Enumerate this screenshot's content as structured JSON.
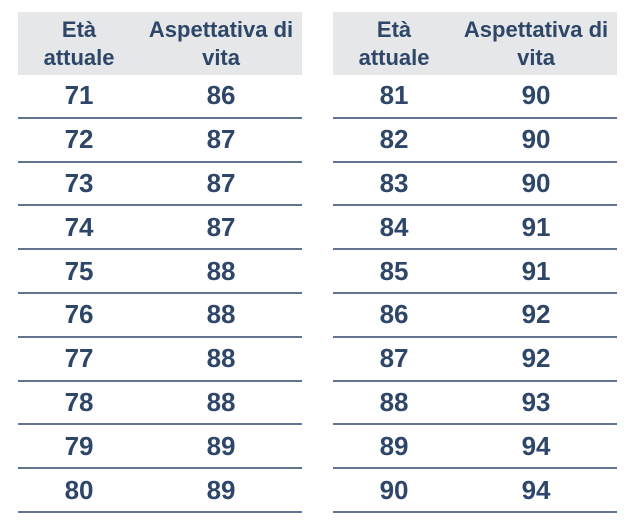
{
  "colors": {
    "background": "#ffffff",
    "header_bg": "#e6e7e9",
    "text": "#2e4668",
    "row_line": "#62748f"
  },
  "tables": [
    {
      "name": "left",
      "columns": [
        "Età attuale",
        "Aspettativa di vita"
      ],
      "rows": [
        [
          71,
          86
        ],
        [
          72,
          87
        ],
        [
          73,
          87
        ],
        [
          74,
          87
        ],
        [
          75,
          88
        ],
        [
          76,
          88
        ],
        [
          77,
          88
        ],
        [
          78,
          88
        ],
        [
          79,
          89
        ],
        [
          80,
          89
        ]
      ]
    },
    {
      "name": "right",
      "columns": [
        "Età attuale",
        "Aspettativa di vita"
      ],
      "rows": [
        [
          81,
          90
        ],
        [
          82,
          90
        ],
        [
          83,
          90
        ],
        [
          84,
          91
        ],
        [
          85,
          91
        ],
        [
          86,
          92
        ],
        [
          87,
          92
        ],
        [
          88,
          93
        ],
        [
          89,
          94
        ],
        [
          90,
          94
        ]
      ]
    }
  ],
  "chart_data": [
    {
      "type": "table",
      "title": "",
      "columns": [
        "Età attuale",
        "Aspettativa di vita"
      ],
      "rows": [
        [
          71,
          86
        ],
        [
          72,
          87
        ],
        [
          73,
          87
        ],
        [
          74,
          87
        ],
        [
          75,
          88
        ],
        [
          76,
          88
        ],
        [
          77,
          88
        ],
        [
          78,
          88
        ],
        [
          79,
          89
        ],
        [
          80,
          89
        ]
      ]
    },
    {
      "type": "table",
      "title": "",
      "columns": [
        "Età attuale",
        "Aspettativa di vita"
      ],
      "rows": [
        [
          81,
          90
        ],
        [
          82,
          90
        ],
        [
          83,
          90
        ],
        [
          84,
          91
        ],
        [
          85,
          91
        ],
        [
          86,
          92
        ],
        [
          87,
          92
        ],
        [
          88,
          93
        ],
        [
          89,
          94
        ],
        [
          90,
          94
        ]
      ]
    }
  ]
}
